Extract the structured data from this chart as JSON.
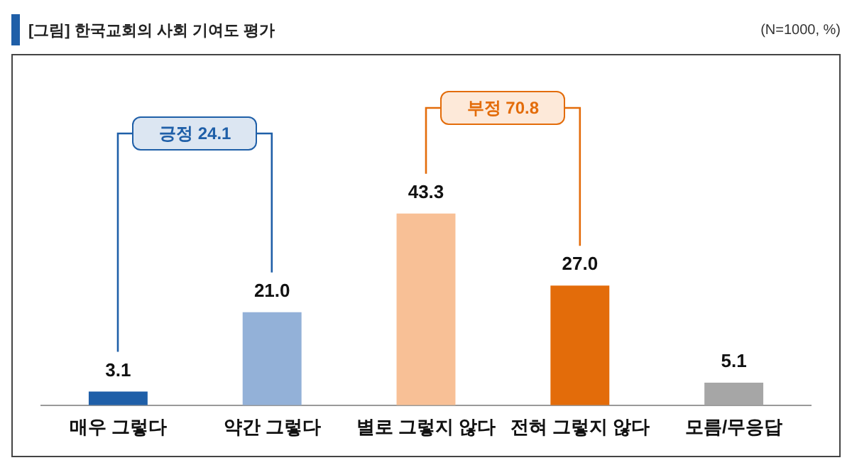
{
  "chart_data": {
    "type": "bar",
    "title": "[그림] 한국교회의 사회 기여도 평가",
    "subtitle": "(N=1000, %)",
    "categories": [
      "매우 그렇다",
      "약간 그렇다",
      "별로 그렇지 않다",
      "전혀 그렇지 않다",
      "모름/무응답"
    ],
    "values": [
      3.1,
      21.0,
      43.3,
      27.0,
      5.1
    ],
    "colors": [
      "#1f5fa8",
      "#93b1d8",
      "#f8c096",
      "#e36c0a",
      "#a6a6a6"
    ],
    "value_labels": [
      "3.1",
      "21.0",
      "43.3",
      "27.0",
      "5.1"
    ],
    "annotations": [
      "긍정 24.1",
      "부정 70.8"
    ],
    "grid": false,
    "legend": false
  }
}
